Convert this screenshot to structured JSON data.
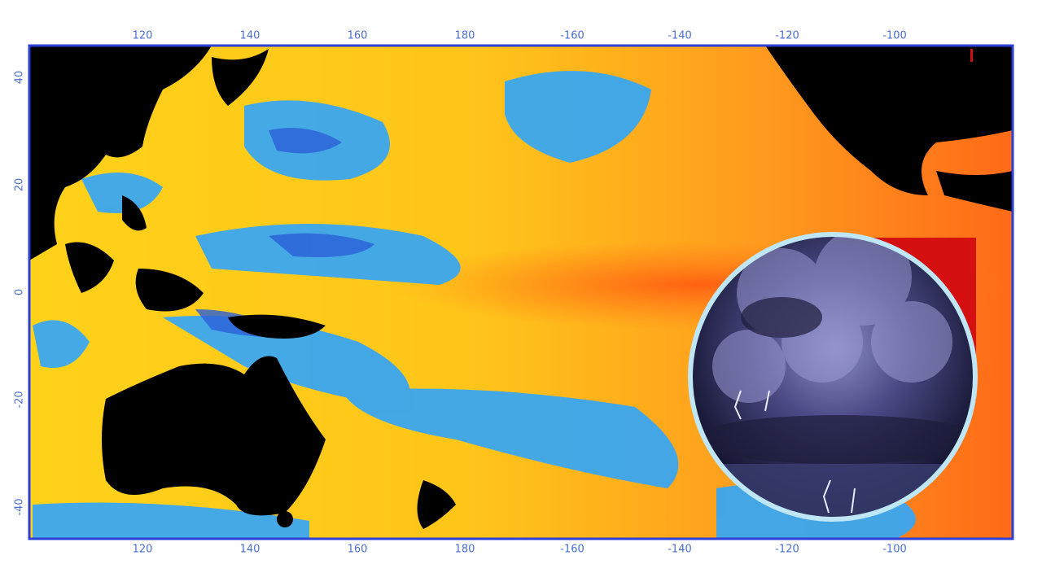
{
  "map": {
    "top_labels": [
      "120",
      "140",
      "160",
      "180",
      "-160",
      "-140",
      "-120",
      "-100"
    ],
    "bottom_labels": [
      "120",
      "140",
      "160",
      "180",
      "-160",
      "-140",
      "-120",
      "-100"
    ],
    "left_labels": [
      "40",
      "20",
      "0",
      "-20",
      "-40"
    ]
  }
}
